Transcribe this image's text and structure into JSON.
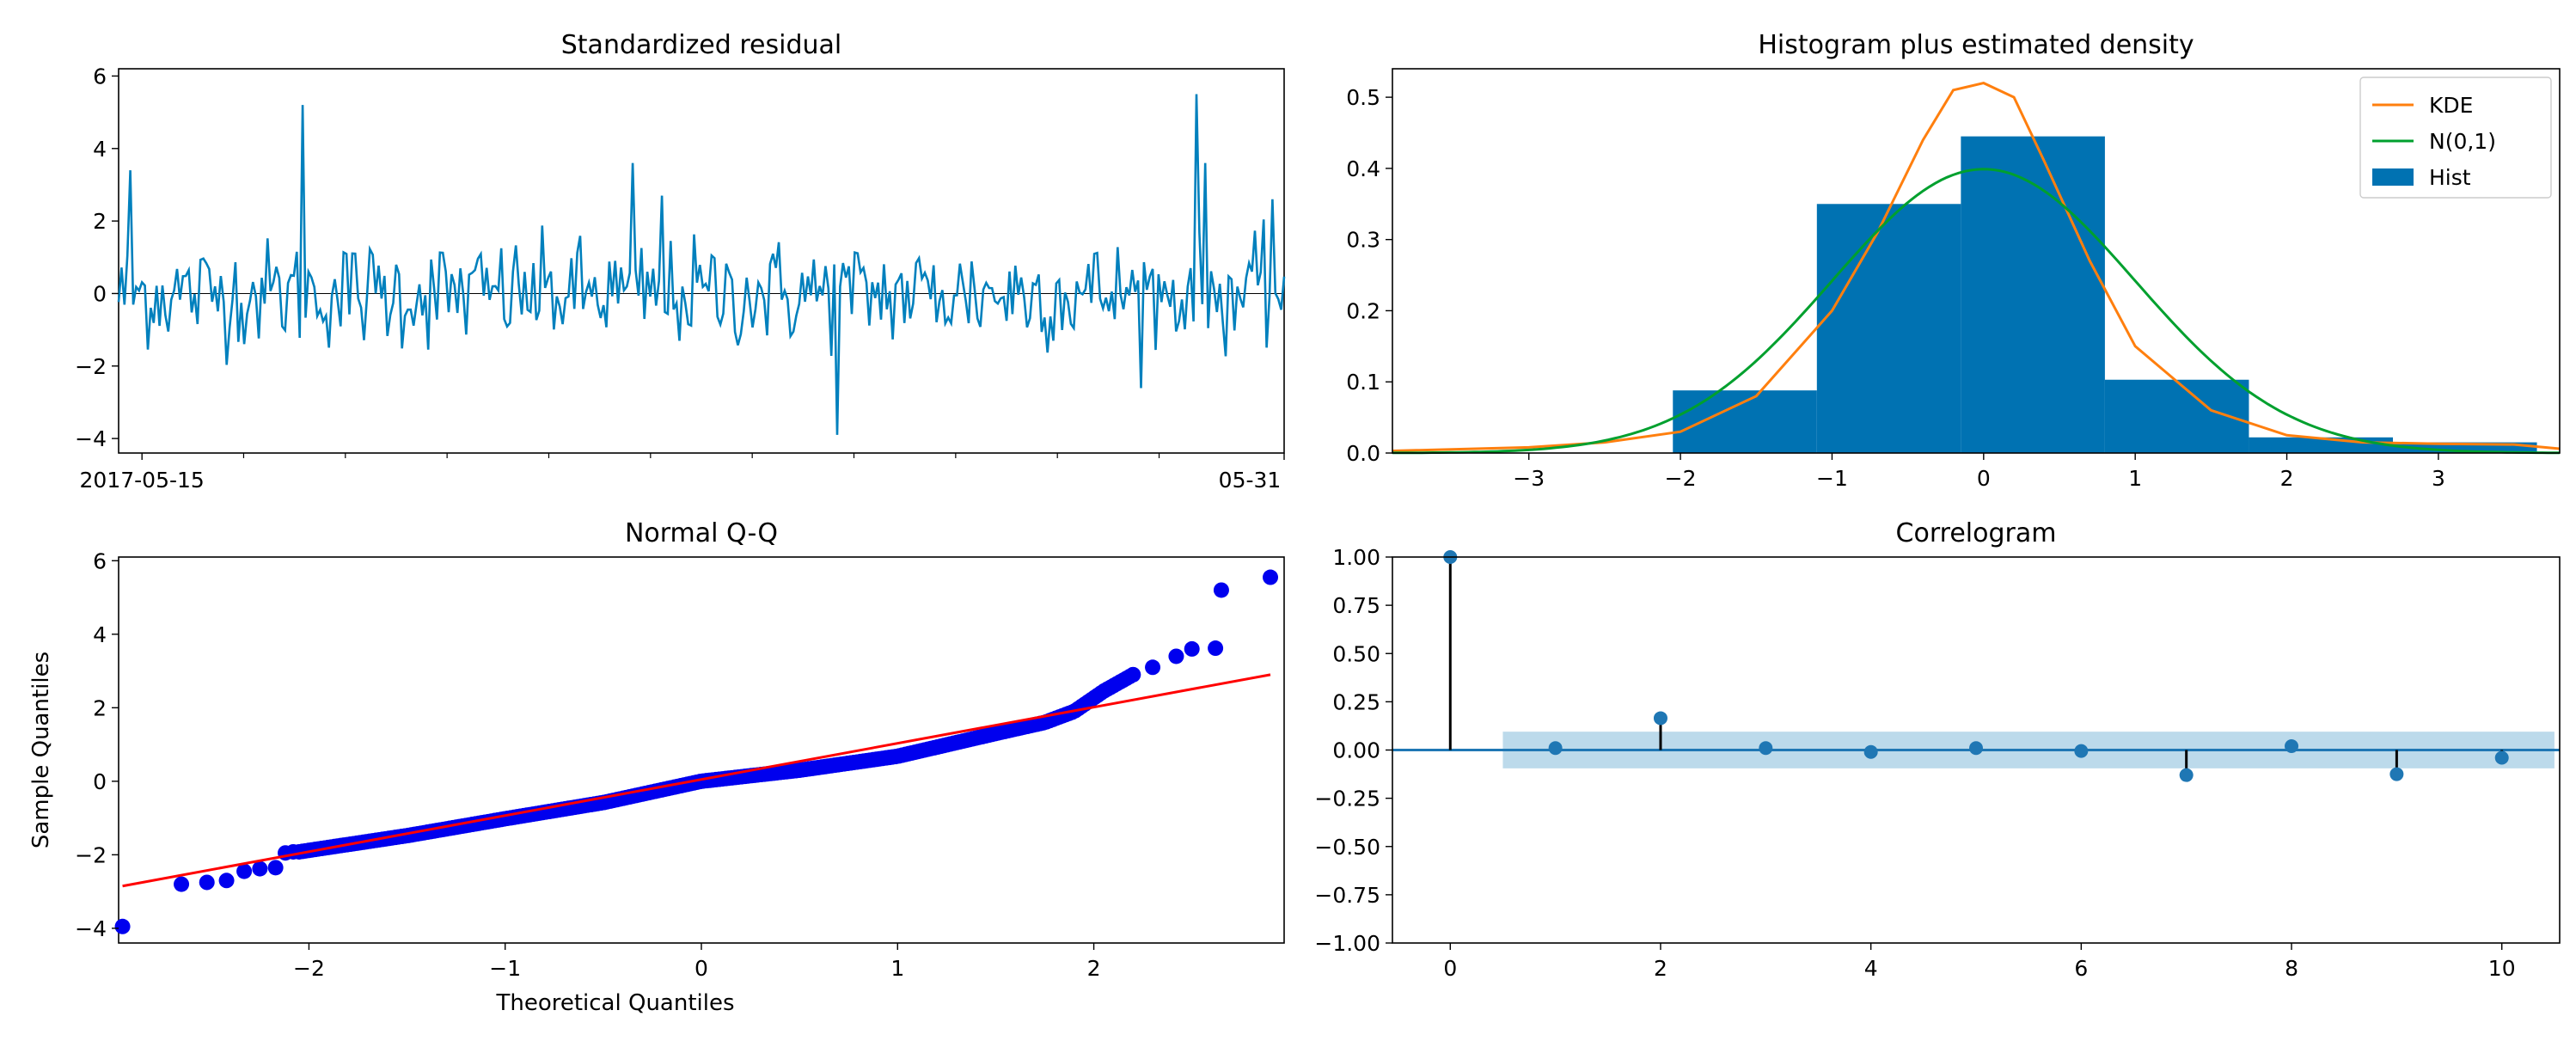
{
  "colors": {
    "residual": "#0080bd",
    "kde": "#ff7f0e",
    "normal": "#00a02e",
    "hist": "#0072b2",
    "qq_points": "#0000ee",
    "qq_line": "#ff0000",
    "acf_line": "#1f77b4",
    "acf_band": "#a6cde4",
    "stem": "#000000"
  },
  "chart_data": [
    {
      "type": "line",
      "title": "Standardized residual",
      "xlabel": "",
      "ylabel": "",
      "x_tick_labels": [
        "2017-05-15",
        "05-31"
      ],
      "minor_tick_count": 10,
      "ylim": [
        -4.4,
        6.2
      ],
      "yticks": [
        -4,
        -2,
        0,
        2,
        4,
        6
      ],
      "n_points": 400,
      "baseline": 0,
      "notable_values": [
        {
          "index": 4,
          "value": 3.4
        },
        {
          "index": 63,
          "value": 5.2
        },
        {
          "index": 176,
          "value": 3.6
        },
        {
          "index": 186,
          "value": 2.7
        },
        {
          "index": 246,
          "value": -3.9
        },
        {
          "index": 369,
          "value": 5.5
        },
        {
          "index": 372,
          "value": 3.6
        },
        {
          "index": 395,
          "value": 2.6
        }
      ]
    },
    {
      "type": "histogram",
      "title": "Histogram plus estimated density",
      "xlim": [
        -3.9,
        3.8
      ],
      "ylim": [
        0,
        0.54
      ],
      "xticks": [
        -3,
        -2,
        -1,
        0,
        1,
        2,
        3
      ],
      "yticks": [
        0.0,
        0.1,
        0.2,
        0.3,
        0.4,
        0.5
      ],
      "bins": [
        {
          "x0": -2.05,
          "x1": -1.1,
          "density": 0.088
        },
        {
          "x0": -1.1,
          "x1": -0.15,
          "density": 0.35
        },
        {
          "x0": -0.15,
          "x1": 0.8,
          "density": 0.445
        },
        {
          "x0": 0.8,
          "x1": 1.75,
          "density": 0.103
        },
        {
          "x0": 1.75,
          "x1": 2.7,
          "density": 0.022
        },
        {
          "x0": 2.7,
          "x1": 3.65,
          "density": 0.015
        }
      ],
      "series": [
        {
          "name": "KDE",
          "x": [
            -3.9,
            -3.0,
            -2.5,
            -2.0,
            -1.5,
            -1.0,
            -0.7,
            -0.4,
            -0.2,
            0.0,
            0.2,
            0.4,
            0.7,
            1.0,
            1.5,
            2.0,
            2.5,
            3.0,
            3.5,
            3.8
          ],
          "y": [
            0.003,
            0.008,
            0.015,
            0.03,
            0.08,
            0.2,
            0.31,
            0.44,
            0.51,
            0.52,
            0.5,
            0.41,
            0.27,
            0.15,
            0.06,
            0.025,
            0.015,
            0.013,
            0.012,
            0.006
          ]
        },
        {
          "name": "N(0,1)",
          "mean": 0,
          "std": 1
        }
      ],
      "legend": [
        {
          "label": "KDE",
          "kind": "line",
          "color_key": "kde"
        },
        {
          "label": "N(0,1)",
          "kind": "line",
          "color_key": "normal"
        },
        {
          "label": "Hist",
          "kind": "patch",
          "color_key": "hist"
        }
      ],
      "legend_position": "top-right"
    },
    {
      "type": "scatter",
      "title": "Normal Q-Q",
      "xlabel": "Theoretical Quantiles",
      "ylabel": "Sample Quantiles",
      "xlim": [
        -2.97,
        2.97
      ],
      "ylim": [
        -4.4,
        6.1
      ],
      "xticks": [
        -2,
        -1,
        0,
        1,
        2
      ],
      "yticks": [
        -4,
        -2,
        0,
        2,
        4,
        6
      ],
      "reference_line": {
        "x": [
          -2.95,
          2.9
        ],
        "y": [
          -2.85,
          2.9
        ]
      },
      "quantile_curve": {
        "x": [
          -2.05,
          -1.5,
          -1.0,
          -0.5,
          0.0,
          0.5,
          1.0,
          1.5,
          1.75,
          1.9,
          2.05,
          2.2
        ],
        "y": [
          -1.92,
          -1.48,
          -1.02,
          -0.58,
          0.0,
          0.3,
          0.68,
          1.3,
          1.6,
          1.9,
          2.45,
          2.9
        ]
      },
      "points": [
        [
          -2.95,
          -3.95
        ],
        [
          -2.65,
          -2.8
        ],
        [
          -2.52,
          -2.75
        ],
        [
          -2.42,
          -2.7
        ],
        [
          -2.33,
          -2.45
        ],
        [
          -2.25,
          -2.38
        ],
        [
          -2.17,
          -2.35
        ],
        [
          -2.12,
          -1.95
        ],
        [
          -2.08,
          -1.92
        ],
        [
          2.2,
          2.9
        ],
        [
          2.3,
          3.1
        ],
        [
          2.42,
          3.4
        ],
        [
          2.5,
          3.6
        ],
        [
          2.62,
          3.62
        ],
        [
          2.65,
          5.2
        ],
        [
          2.9,
          5.55
        ]
      ]
    },
    {
      "type": "stem",
      "title": "Correlogram",
      "xlim": [
        -0.55,
        10.55
      ],
      "ylim": [
        -1.0,
        1.0
      ],
      "xticks": [
        0,
        2,
        4,
        6,
        8,
        10
      ],
      "yticks": [
        -1.0,
        -0.75,
        -0.5,
        -0.25,
        0.0,
        0.25,
        0.5,
        0.75,
        1.0
      ],
      "lags": [
        0,
        1,
        2,
        3,
        4,
        5,
        6,
        7,
        8,
        9,
        10
      ],
      "values": [
        1.0,
        0.01,
        0.165,
        0.01,
        -0.01,
        0.01,
        -0.005,
        -0.13,
        0.02,
        -0.125,
        -0.04
      ],
      "confidence_band": {
        "x0": 0.5,
        "x1": 10.5,
        "lower": -0.095,
        "upper": 0.095
      }
    }
  ]
}
